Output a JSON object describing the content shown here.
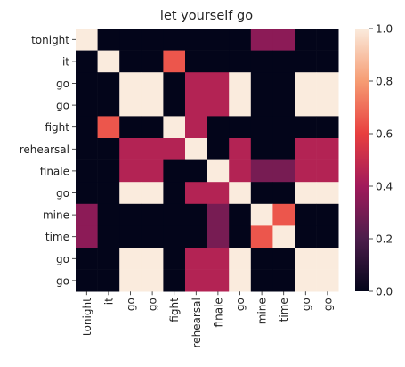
{
  "chart_data": {
    "type": "heatmap",
    "title": "let yourself go",
    "x_labels": [
      "tonight",
      "it",
      "go",
      "go",
      "fight",
      "rehearsal",
      "finale",
      "go",
      "mine",
      "time",
      "go",
      "go"
    ],
    "y_labels": [
      "tonight",
      "it",
      "go",
      "go",
      "fight",
      "rehearsal",
      "finale",
      "go",
      "mine",
      "time",
      "go",
      "go"
    ],
    "tokens": [
      "tonight",
      "it",
      "go",
      "go",
      "fight",
      "rehearsal",
      "finale",
      "go",
      "mine",
      "time",
      "go",
      "go"
    ],
    "vmin": 0,
    "vmax": 1,
    "colorbar_ticks": [
      "0.0",
      "0.2",
      "0.4",
      "0.6",
      "0.8",
      "1.0"
    ],
    "colormap": "rocket",
    "colormap_stops": [
      "#03051a",
      "#4c1d4b",
      "#a11a5b",
      "#e83f3f",
      "#f69c73",
      "#faebdd"
    ],
    "cell_rule": "value of cell (i,j) = similarity between tokens[i] and tokens[j]; identical words = 1.0",
    "pair_values": [
      {
        "a": "tonight",
        "b": "mine",
        "value": 0.35
      },
      {
        "a": "tonight",
        "b": "time",
        "value": 0.35
      },
      {
        "a": "it",
        "b": "fight",
        "value": 0.65
      },
      {
        "a": "go",
        "b": "rehearsal",
        "value": 0.45
      },
      {
        "a": "fight",
        "b": "rehearsal",
        "value": 0.45
      },
      {
        "a": "finale",
        "b": "go",
        "value": 0.45
      },
      {
        "a": "finale",
        "b": "mine",
        "value": 0.3
      },
      {
        "a": "finale",
        "b": "time",
        "value": 0.3
      },
      {
        "a": "mine",
        "b": "time",
        "value": 0.65
      }
    ]
  }
}
